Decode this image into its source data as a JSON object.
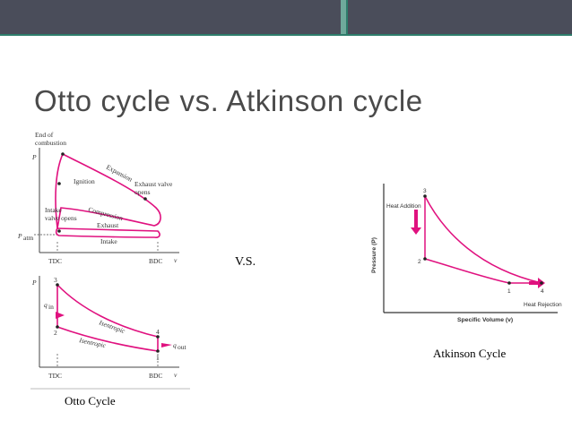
{
  "theme": {
    "bar_dark": "#4a4d5a",
    "bar_accent": "#2e7d6b",
    "bar_light": "#6fa99b",
    "curve": "#e0117f",
    "title": "#4a4a4a"
  },
  "slide": {
    "title": "Otto cycle vs. Atkinson cycle",
    "vs_text": "V.S."
  },
  "otto": {
    "caption": "Otto Cycle",
    "top": {
      "axis_p": "P",
      "axis_v": "v",
      "tdc": "TDC",
      "bdc": "BDC",
      "patm": "P",
      "labels": [
        "End of",
        "combustion",
        "Ignition",
        "Expansion",
        "Exhaust valve",
        "opens",
        "Intake",
        "valve opens",
        "Compression",
        "Exhaust",
        "Intake"
      ]
    },
    "bottom": {
      "axis_p": "P",
      "axis_v": "v",
      "tdc": "TDC",
      "bdc": "BDC",
      "labels": [
        "Isentropic",
        "Isentropic",
        "q",
        "q"
      ],
      "points": [
        "1",
        "2",
        "3",
        "4"
      ]
    }
  },
  "atkinson": {
    "caption": "Atkinson Cycle",
    "ylabel": "Pressure (P)",
    "xlabel": "Specific Volume (v)",
    "heat_addition": "Heat Addition",
    "heat_rejection": "Heat Rejection",
    "points": [
      "1",
      "2",
      "3",
      "4"
    ]
  }
}
